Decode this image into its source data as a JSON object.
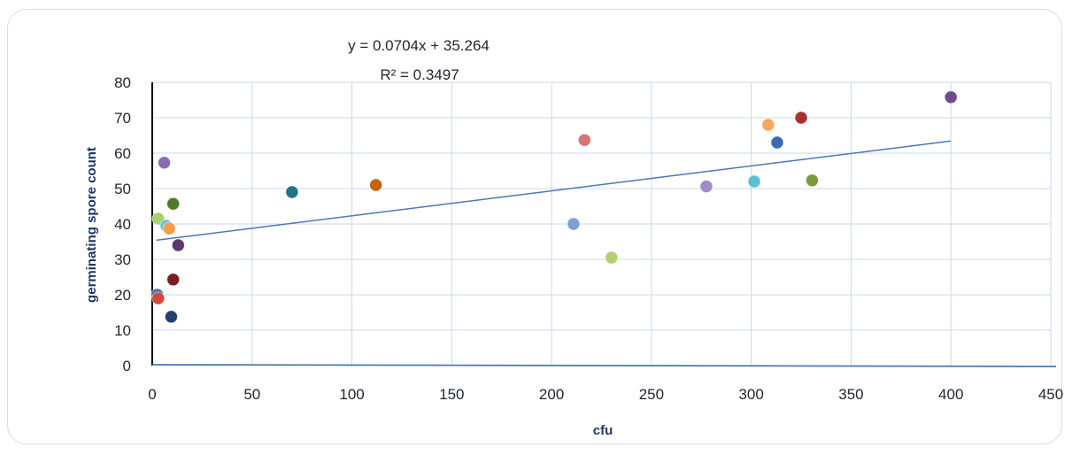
{
  "chart_data": {
    "type": "scatter",
    "xlabel": "cfu",
    "ylabel": "germinating spore count",
    "xlim": [
      0,
      450
    ],
    "ylim": [
      0,
      80
    ],
    "x_ticks": [
      "0",
      "50",
      "100",
      "150",
      "200",
      "250",
      "300",
      "350",
      "400",
      "450"
    ],
    "y_ticks": [
      "0",
      "10",
      "20",
      "30",
      "40",
      "50",
      "60",
      "70",
      "80"
    ],
    "grid": true,
    "legend": "none",
    "trendline": {
      "type": "linear",
      "slope": 0.0704,
      "intercept": 35.264,
      "x_range": [
        2,
        400
      ],
      "equation": "y = 0.0704x + 35.264",
      "r_squared": "R² = 0.3497"
    },
    "points": [
      {
        "x": 400,
        "y": 75.8,
        "color": "#6e4b8a"
      },
      {
        "x": 325,
        "y": 70.0,
        "color": "#a83232"
      },
      {
        "x": 308.5,
        "y": 68.0,
        "color": "#f7a65a"
      },
      {
        "x": 313,
        "y": 63.0,
        "color": "#3d6bb3"
      },
      {
        "x": 216.5,
        "y": 63.7,
        "color": "#d77474"
      },
      {
        "x": 330.5,
        "y": 52.3,
        "color": "#7a9a3c"
      },
      {
        "x": 301.5,
        "y": 52.0,
        "color": "#5bbfd6"
      },
      {
        "x": 277.5,
        "y": 50.6,
        "color": "#a08ac8"
      },
      {
        "x": 211,
        "y": 40.0,
        "color": "#7f9fd6"
      },
      {
        "x": 230,
        "y": 30.5,
        "color": "#b5cf6b"
      },
      {
        "x": 112,
        "y": 51.0,
        "color": "#c5620f"
      },
      {
        "x": 70,
        "y": 49.0,
        "color": "#1f7388"
      },
      {
        "x": 6,
        "y": 57.3,
        "color": "#8a6bb8"
      },
      {
        "x": 10.5,
        "y": 45.7,
        "color": "#4e7a2a"
      },
      {
        "x": 3,
        "y": 41.5,
        "color": "#a5d26a"
      },
      {
        "x": 7,
        "y": 39.5,
        "color": "#6fc3d8"
      },
      {
        "x": 8.5,
        "y": 38.7,
        "color": "#f39c4a"
      },
      {
        "x": 13,
        "y": 34.0,
        "color": "#5a3a6e"
      },
      {
        "x": 10.5,
        "y": 24.3,
        "color": "#7a1f1f"
      },
      {
        "x": 2.5,
        "y": 20.0,
        "color": "#4d6fb0"
      },
      {
        "x": 3,
        "y": 19.0,
        "color": "#d24a3c"
      },
      {
        "x": 9.5,
        "y": 13.8,
        "color": "#24406e"
      }
    ]
  },
  "colors": {
    "axis": "#000000",
    "grid": "#c9d8ef",
    "trendline": "#4a78b8",
    "frame": "#d9dde6"
  }
}
